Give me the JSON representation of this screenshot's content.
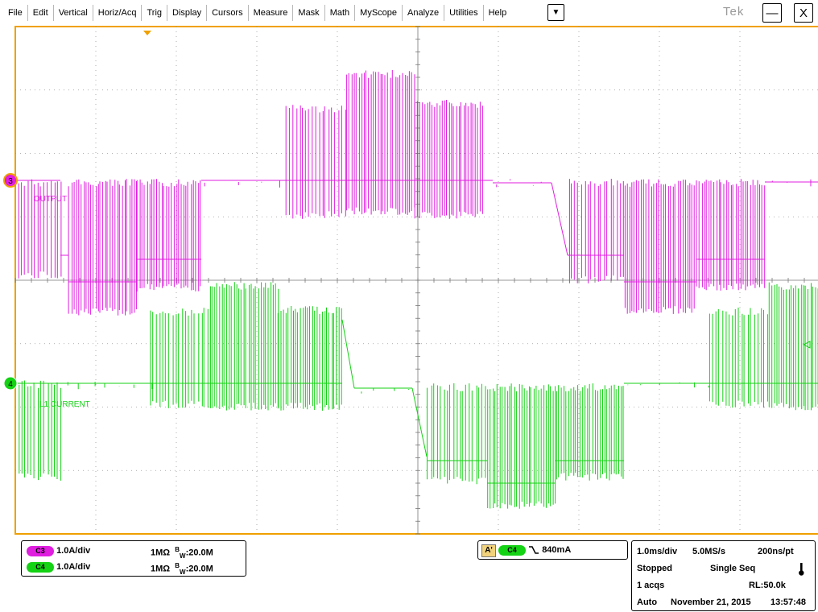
{
  "menu": {
    "items": [
      "File",
      "Edit",
      "Vertical",
      "Horiz/Acq",
      "Trig",
      "Display",
      "Cursors",
      "Measure",
      "Mask",
      "Math",
      "MyScope",
      "Analyze",
      "Utilities",
      "Help"
    ],
    "dropdown_glyph": "▼",
    "brand": "Tek",
    "minimize_glyph": "—",
    "close_glyph": "X"
  },
  "display": {
    "colors": {
      "ch3": "#e01ee0",
      "ch4": "#14d214",
      "border": "#f0a000",
      "grid": "#999999"
    },
    "ch3_marker": "3",
    "ch4_marker": "4",
    "ch3_label": "OUTPUT",
    "ch4_label": "L1 CURRENT"
  },
  "channels": [
    {
      "badge": "C3",
      "scale": "1.0A/div",
      "impedance": "1MΩ",
      "bw_prefix": "B",
      "bw_sub": "W",
      "bw_value": ":20.0M",
      "color": "#e01ee0"
    },
    {
      "badge": "C4",
      "scale": "1.0A/div",
      "impedance": "1MΩ",
      "bw_prefix": "B",
      "bw_sub": "W",
      "bw_value": ":20.0M",
      "color": "#14d214"
    }
  ],
  "trigger": {
    "letter": "A'",
    "source": "C4",
    "slope_icon": "falling-edge",
    "level": "840mA"
  },
  "acquisition": {
    "timebase": "1.0ms/div",
    "sample_rate": "5.0MS/s",
    "resolution": "200ns/pt",
    "state": "Stopped",
    "mode": "Single Seq",
    "acqs": "1 acqs",
    "record_length": "RL:50.0k",
    "trigger_mode": "Auto",
    "date": "November 21, 2015",
    "time": "13:57:48"
  }
}
